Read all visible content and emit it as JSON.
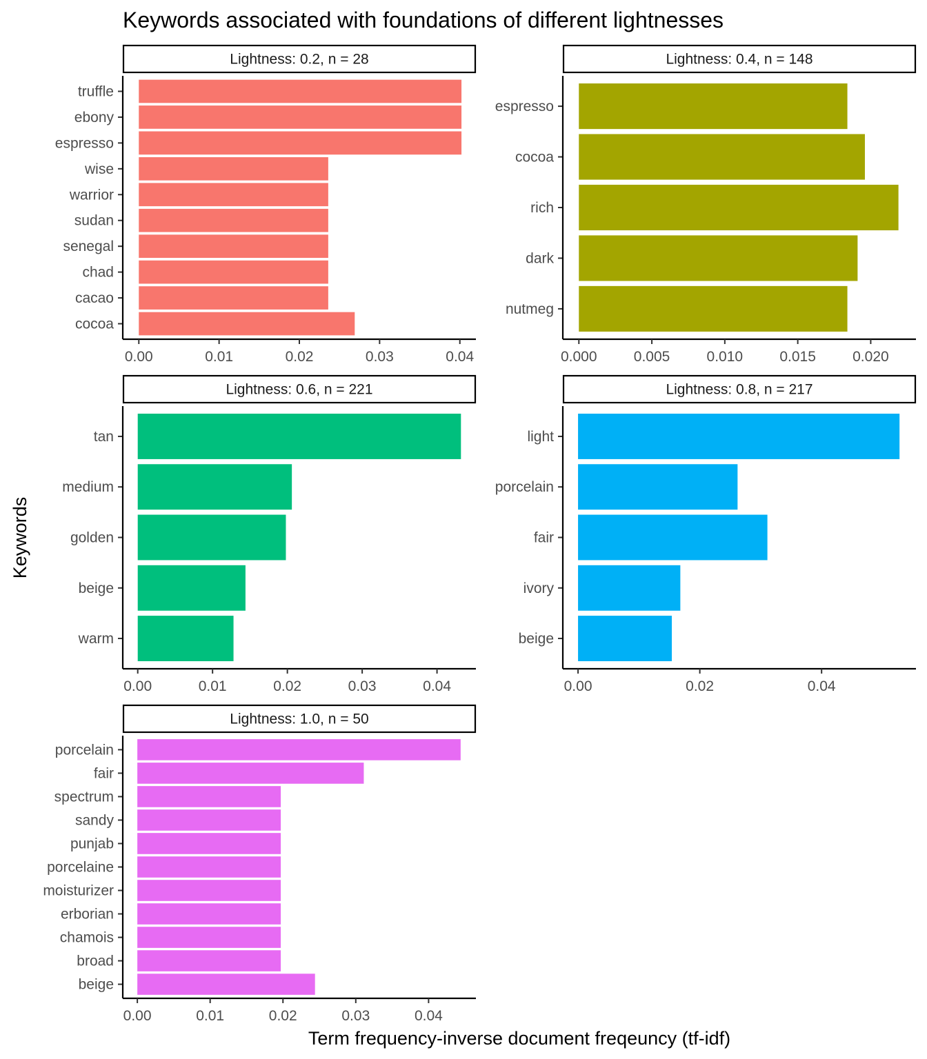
{
  "chart_data": {
    "type": "bar",
    "orientation": "horizontal",
    "title": "Keywords associated with foundations of different lightnesses",
    "xlabel": "Term frequency-inverse document freqeuncy (tf-idf)",
    "ylabel": "Keywords",
    "panels": [
      {
        "strip": "Lightness: 0.2, n = 28",
        "color": "#F8766D",
        "xlim": [
          -0.002,
          0.042
        ],
        "ticks": [
          0,
          0.01,
          0.02,
          0.03,
          0.04
        ],
        "tick_labels": [
          "0.00",
          "0.01",
          "0.02",
          "0.03",
          "0.04"
        ],
        "categories": [
          "truffle",
          "ebony",
          "espresso",
          "wise",
          "warrior",
          "sudan",
          "senegal",
          "chad",
          "cacao",
          "cocoa"
        ],
        "values": [
          0.0402,
          0.0402,
          0.0402,
          0.0236,
          0.0236,
          0.0236,
          0.0236,
          0.0236,
          0.0236,
          0.0269
        ]
      },
      {
        "strip": "Lightness: 0.4, n = 148",
        "color": "#A3A500",
        "xlim": [
          -0.0011,
          0.0231
        ],
        "ticks": [
          0,
          0.005,
          0.01,
          0.015,
          0.02
        ],
        "tick_labels": [
          "0.000",
          "0.005",
          "0.010",
          "0.015",
          "0.020"
        ],
        "categories": [
          "espresso",
          "cocoa",
          "rich",
          "dark",
          "nutmeg"
        ],
        "values": [
          0.0184,
          0.0196,
          0.0219,
          0.0191,
          0.0184
        ]
      },
      {
        "strip": "Lightness: 0.6, n = 221",
        "color": "#00BF7D",
        "xlim": [
          -0.002,
          0.0452
        ],
        "ticks": [
          0,
          0.01,
          0.02,
          0.03,
          0.04
        ],
        "tick_labels": [
          "0.00",
          "0.01",
          "0.02",
          "0.03",
          "0.04"
        ],
        "categories": [
          "tan",
          "medium",
          "golden",
          "beige",
          "warm"
        ],
        "values": [
          0.0432,
          0.0206,
          0.0198,
          0.0144,
          0.0128
        ]
      },
      {
        "strip": "Lightness: 0.8, n = 217",
        "color": "#00B0F6",
        "xlim": [
          -0.0025,
          0.0555
        ],
        "ticks": [
          0,
          0.02,
          0.04
        ],
        "tick_labels": [
          "0.00",
          "0.02",
          "0.04"
        ],
        "categories": [
          "light",
          "porcelain",
          "fair",
          "ivory",
          "beige"
        ],
        "values": [
          0.0528,
          0.0262,
          0.0311,
          0.0168,
          0.0154
        ]
      },
      {
        "strip": "Lightness: 1.0, n = 50",
        "color": "#E76BF3",
        "xlim": [
          -0.002,
          0.0465
        ],
        "ticks": [
          0,
          0.01,
          0.02,
          0.03,
          0.04
        ],
        "tick_labels": [
          "0.00",
          "0.01",
          "0.02",
          "0.03",
          "0.04"
        ],
        "categories": [
          "porcelain",
          "fair",
          "spectrum",
          "sandy",
          "punjab",
          "porcelaine",
          "moisturizer",
          "erborian",
          "chamois",
          "broad",
          "beige"
        ],
        "values": [
          0.0444,
          0.0311,
          0.0197,
          0.0197,
          0.0197,
          0.0197,
          0.0197,
          0.0197,
          0.0197,
          0.0197,
          0.0244
        ]
      }
    ]
  }
}
